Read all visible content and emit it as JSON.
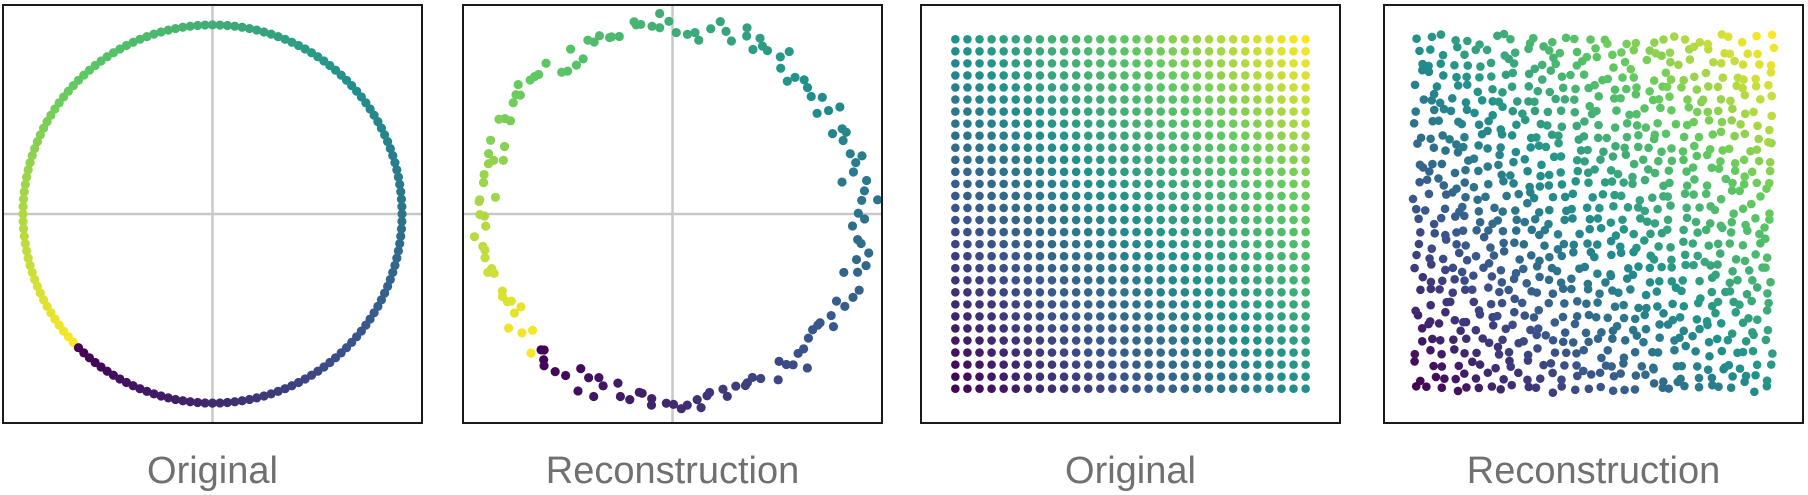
{
  "captions": [
    "Original",
    "Reconstruction",
    "Original",
    "Reconstruction"
  ],
  "colormap": [
    "#440154",
    "#3b528b",
    "#21918c",
    "#5ec962",
    "#fde725"
  ],
  "crosshair_color": "#c8c8c8",
  "chart_data": [
    {
      "type": "scatter",
      "title": "",
      "caption": "Original",
      "shape": "circle",
      "n_points": 160,
      "radius": 1.0,
      "center": [
        0,
        0
      ],
      "xlim": [
        -1.1,
        1.1
      ],
      "ylim": [
        -1.1,
        1.1
      ],
      "crosshair": true,
      "color_by": "angle (viridis)",
      "noise": 0.0
    },
    {
      "type": "scatter",
      "title": "",
      "caption": "Reconstruction",
      "shape": "circle",
      "n_points": 160,
      "radius": 1.0,
      "center": [
        0,
        0
      ],
      "xlim": [
        -1.1,
        1.1
      ],
      "ylim": [
        -1.1,
        1.1
      ],
      "crosshair": true,
      "color_by": "angle (viridis)",
      "noise": 0.06
    },
    {
      "type": "scatter",
      "title": "",
      "caption": "Original",
      "shape": "grid",
      "grid": [
        30,
        30
      ],
      "xlim": [
        0,
        1
      ],
      "ylim": [
        0,
        1
      ],
      "crosshair": false,
      "color_by": "x + y (viridis)",
      "noise": 0.0
    },
    {
      "type": "scatter",
      "title": "",
      "caption": "Reconstruction",
      "shape": "grid",
      "grid": [
        30,
        30
      ],
      "xlim": [
        0,
        1
      ],
      "ylim": [
        0,
        1
      ],
      "crosshair": false,
      "color_by": "x + y (viridis)",
      "noise": 0.012
    }
  ]
}
